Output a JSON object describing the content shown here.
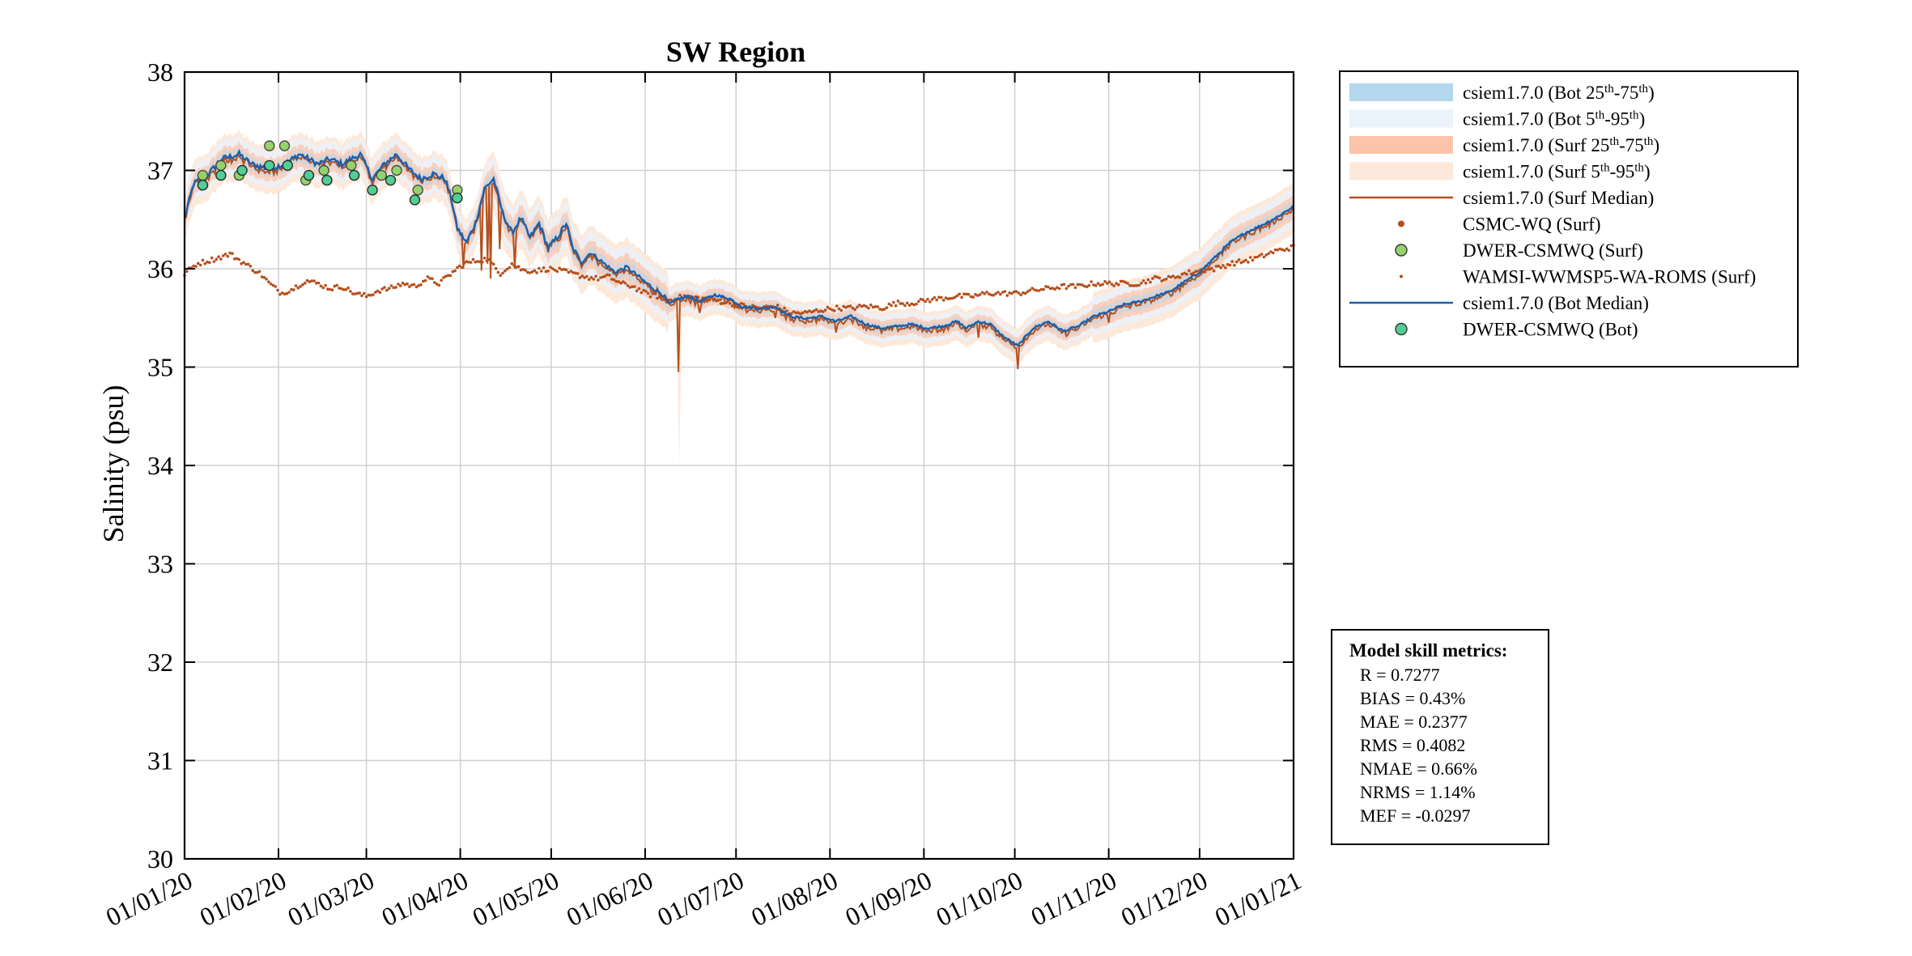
{
  "chart_data": {
    "type": "line",
    "title": "SW Region",
    "ylabel": "Salinity (psu)",
    "xlabel": "",
    "ylim": [
      30,
      38
    ],
    "yticks": [
      "30",
      "31",
      "32",
      "33",
      "34",
      "35",
      "36",
      "37",
      "38"
    ],
    "xlim_days": [
      0,
      366
    ],
    "xticks": [
      {
        "day": 0,
        "label": "01/01/20"
      },
      {
        "day": 31,
        "label": "01/02/20"
      },
      {
        "day": 60,
        "label": "01/03/20"
      },
      {
        "day": 91,
        "label": "01/04/20"
      },
      {
        "day": 121,
        "label": "01/05/20"
      },
      {
        "day": 152,
        "label": "01/06/20"
      },
      {
        "day": 182,
        "label": "01/07/20"
      },
      {
        "day": 213,
        "label": "01/08/20"
      },
      {
        "day": 244,
        "label": "01/09/20"
      },
      {
        "day": 274,
        "label": "01/10/20"
      },
      {
        "day": 305,
        "label": "01/11/20"
      },
      {
        "day": 335,
        "label": "01/12/20"
      },
      {
        "day": 366,
        "label": "01/01/21"
      }
    ],
    "grid": true,
    "legend_position": "outside-top-right",
    "colors": {
      "bot_iqr": "#b3d7ec",
      "bot_5_95": "#eaf2fa",
      "surf_iqr": "#fcc4ab",
      "surf_5_95": "#fde9da",
      "surf_median": "#b5501e",
      "bot_median": "#1f5fa8",
      "roms": "#b5501e",
      "dwer_surf": "#94d36a",
      "dwer_bot": "#4fcf94"
    },
    "legend": [
      {
        "key": "bot_iqr",
        "kind": "patch",
        "pre": "csiem1.7.0 (Bot 25",
        "s1": "th",
        "mid": "-75",
        "s2": "th",
        "post": ")"
      },
      {
        "key": "bot_5_95",
        "kind": "patch",
        "pre": "csiem1.7.0 (Bot 5",
        "s1": "th",
        "mid": "-95",
        "s2": "th",
        "post": ")"
      },
      {
        "key": "surf_iqr",
        "kind": "patch",
        "pre": "csiem1.7.0 (Surf 25",
        "s1": "th",
        "mid": "-75",
        "s2": "th",
        "post": ")"
      },
      {
        "key": "surf_5_95",
        "kind": "patch",
        "pre": "csiem1.7.0 (Surf 5",
        "s1": "th",
        "mid": "-95",
        "s2": "th",
        "post": ")"
      },
      {
        "key": "surf_median",
        "kind": "line",
        "pre": "csiem1.7.0 (Surf Median)"
      },
      {
        "key": "roms",
        "kind": "bigdot",
        "pre": "CSMC-WQ (Surf)"
      },
      {
        "key": "dwer_surf",
        "kind": "circle",
        "pre": "DWER-CSMWQ (Surf)"
      },
      {
        "key": "roms",
        "kind": "smalldot",
        "pre": "WAMSI-WWMSP5-WA-ROMS (Surf)"
      },
      {
        "key": "bot_median",
        "kind": "line",
        "pre": "csiem1.7.0 (Bot Median)"
      },
      {
        "key": "dwer_bot",
        "kind": "circle",
        "pre": "DWER-CSMWQ (Bot)"
      }
    ],
    "metrics_title": "Model skill metrics:",
    "metrics": [
      "R    = 0.7277",
      "BIAS = 0.43%",
      "MAE  = 0.2377",
      "RMS  = 0.4082",
      "NMAE = 0.66%",
      "NRMS = 1.14%",
      "MEF  = -0.0297"
    ],
    "series": {
      "median_knots": [
        [
          0,
          36.5
        ],
        [
          3,
          36.85
        ],
        [
          8,
          36.95
        ],
        [
          12,
          37.1
        ],
        [
          18,
          37.15
        ],
        [
          22,
          37.05
        ],
        [
          28,
          37.0
        ],
        [
          33,
          37.05
        ],
        [
          38,
          37.15
        ],
        [
          44,
          37.05
        ],
        [
          48,
          37.1
        ],
        [
          52,
          37.05
        ],
        [
          58,
          37.15
        ],
        [
          62,
          36.9
        ],
        [
          66,
          37.05
        ],
        [
          70,
          37.15
        ],
        [
          74,
          37.0
        ],
        [
          78,
          36.9
        ],
        [
          82,
          36.95
        ],
        [
          86,
          36.9
        ],
        [
          88,
          36.7
        ],
        [
          90,
          36.4
        ],
        [
          93,
          36.25
        ],
        [
          96,
          36.45
        ],
        [
          99,
          36.8
        ],
        [
          102,
          36.9
        ],
        [
          105,
          36.55
        ],
        [
          108,
          36.35
        ],
        [
          111,
          36.5
        ],
        [
          114,
          36.3
        ],
        [
          117,
          36.45
        ],
        [
          120,
          36.2
        ],
        [
          123,
          36.3
        ],
        [
          126,
          36.45
        ],
        [
          128,
          36.2
        ],
        [
          131,
          36.05
        ],
        [
          134,
          36.15
        ],
        [
          138,
          36.05
        ],
        [
          142,
          35.95
        ],
        [
          146,
          36.0
        ],
        [
          150,
          35.9
        ],
        [
          152,
          35.85
        ],
        [
          155,
          35.78
        ],
        [
          158,
          35.72
        ],
        [
          160,
          35.62
        ],
        [
          163,
          35.68
        ],
        [
          167,
          35.7
        ],
        [
          170,
          35.65
        ],
        [
          175,
          35.72
        ],
        [
          180,
          35.68
        ],
        [
          184,
          35.6
        ],
        [
          190,
          35.58
        ],
        [
          195,
          35.6
        ],
        [
          200,
          35.5
        ],
        [
          205,
          35.48
        ],
        [
          210,
          35.5
        ],
        [
          215,
          35.45
        ],
        [
          220,
          35.5
        ],
        [
          225,
          35.42
        ],
        [
          230,
          35.38
        ],
        [
          235,
          35.4
        ],
        [
          240,
          35.42
        ],
        [
          245,
          35.38
        ],
        [
          250,
          35.4
        ],
        [
          255,
          35.45
        ],
        [
          258,
          35.38
        ],
        [
          262,
          35.45
        ],
        [
          266,
          35.42
        ],
        [
          270,
          35.3
        ],
        [
          275,
          35.2
        ],
        [
          280,
          35.38
        ],
        [
          285,
          35.45
        ],
        [
          290,
          35.35
        ],
        [
          295,
          35.4
        ],
        [
          300,
          35.5
        ],
        [
          305,
          35.55
        ],
        [
          310,
          35.62
        ],
        [
          315,
          35.65
        ],
        [
          320,
          35.7
        ],
        [
          325,
          35.75
        ],
        [
          330,
          35.85
        ],
        [
          335,
          35.95
        ],
        [
          340,
          36.1
        ],
        [
          345,
          36.25
        ],
        [
          350,
          36.35
        ],
        [
          355,
          36.42
        ],
        [
          360,
          36.5
        ],
        [
          366,
          36.62
        ]
      ],
      "surf_spikes": [
        [
          92,
          36.0
        ],
        [
          98,
          35.98
        ],
        [
          100,
          36.05
        ],
        [
          101,
          35.9
        ],
        [
          104,
          36.2
        ],
        [
          109,
          36.0
        ],
        [
          156,
          35.8
        ],
        [
          163,
          34.95
        ],
        [
          170,
          35.55
        ],
        [
          195,
          35.5
        ],
        [
          215,
          35.35
        ],
        [
          262,
          35.3
        ],
        [
          275,
          34.98
        ],
        [
          305,
          35.45
        ]
      ],
      "roms_knots": [
        [
          0,
          35.95
        ],
        [
          4,
          36.05
        ],
        [
          10,
          36.1
        ],
        [
          15,
          36.15
        ],
        [
          20,
          36.05
        ],
        [
          25,
          35.95
        ],
        [
          28,
          35.85
        ],
        [
          32,
          35.75
        ],
        [
          36,
          35.8
        ],
        [
          40,
          35.88
        ],
        [
          44,
          35.85
        ],
        [
          48,
          35.8
        ],
        [
          52,
          35.82
        ],
        [
          56,
          35.75
        ],
        [
          60,
          35.72
        ],
        [
          64,
          35.78
        ],
        [
          68,
          35.8
        ],
        [
          72,
          35.85
        ],
        [
          76,
          35.82
        ],
        [
          80,
          35.9
        ],
        [
          84,
          35.85
        ],
        [
          88,
          35.95
        ],
        [
          92,
          36.05
        ],
        [
          96,
          36.08
        ],
        [
          100,
          36.1
        ],
        [
          104,
          35.95
        ],
        [
          108,
          36.05
        ],
        [
          112,
          35.98
        ],
        [
          116,
          35.98
        ],
        [
          120,
          36.0
        ],
        [
          124,
          35.98
        ],
        [
          128,
          35.95
        ],
        [
          132,
          35.92
        ],
        [
          136,
          35.9
        ],
        [
          140,
          35.92
        ],
        [
          144,
          35.85
        ],
        [
          148,
          35.82
        ],
        [
          152,
          35.75
        ],
        [
          156,
          35.72
        ],
        [
          160,
          35.68
        ],
        [
          165,
          35.72
        ],
        [
          170,
          35.7
        ],
        [
          175,
          35.68
        ],
        [
          180,
          35.65
        ],
        [
          185,
          35.62
        ],
        [
          190,
          35.6
        ],
        [
          195,
          35.62
        ],
        [
          200,
          35.55
        ],
        [
          205,
          35.55
        ],
        [
          210,
          35.58
        ],
        [
          215,
          35.6
        ],
        [
          220,
          35.6
        ],
        [
          225,
          35.62
        ],
        [
          230,
          35.6
        ],
        [
          235,
          35.65
        ],
        [
          240,
          35.65
        ],
        [
          245,
          35.68
        ],
        [
          250,
          35.7
        ],
        [
          255,
          35.72
        ],
        [
          260,
          35.72
        ],
        [
          265,
          35.75
        ],
        [
          270,
          35.75
        ],
        [
          275,
          35.75
        ],
        [
          280,
          35.78
        ],
        [
          285,
          35.8
        ],
        [
          290,
          35.82
        ],
        [
          295,
          35.82
        ],
        [
          300,
          35.85
        ],
        [
          305,
          35.85
        ],
        [
          310,
          35.85
        ],
        [
          315,
          35.85
        ],
        [
          320,
          35.9
        ],
        [
          325,
          35.9
        ],
        [
          330,
          35.95
        ],
        [
          335,
          35.98
        ],
        [
          340,
          36.0
        ],
        [
          345,
          36.05
        ],
        [
          350,
          36.08
        ],
        [
          355,
          36.12
        ],
        [
          360,
          36.18
        ],
        [
          366,
          36.22
        ]
      ],
      "dwer_surf": [
        [
          6,
          36.95
        ],
        [
          12,
          37.05
        ],
        [
          18,
          36.95
        ],
        [
          28,
          37.25
        ],
        [
          33,
          37.25
        ],
        [
          40,
          36.9
        ],
        [
          46,
          37.0
        ],
        [
          55,
          37.05
        ],
        [
          65,
          36.95
        ],
        [
          70,
          37.0
        ],
        [
          77,
          36.8
        ],
        [
          90,
          36.8
        ]
      ],
      "dwer_bot": [
        [
          6,
          36.85
        ],
        [
          12,
          36.95
        ],
        [
          19,
          37.0
        ],
        [
          28,
          37.05
        ],
        [
          34,
          37.05
        ],
        [
          41,
          36.95
        ],
        [
          47,
          36.9
        ],
        [
          56,
          36.95
        ],
        [
          62,
          36.8
        ],
        [
          68,
          36.9
        ],
        [
          76,
          36.7
        ],
        [
          90,
          36.72
        ]
      ]
    }
  }
}
